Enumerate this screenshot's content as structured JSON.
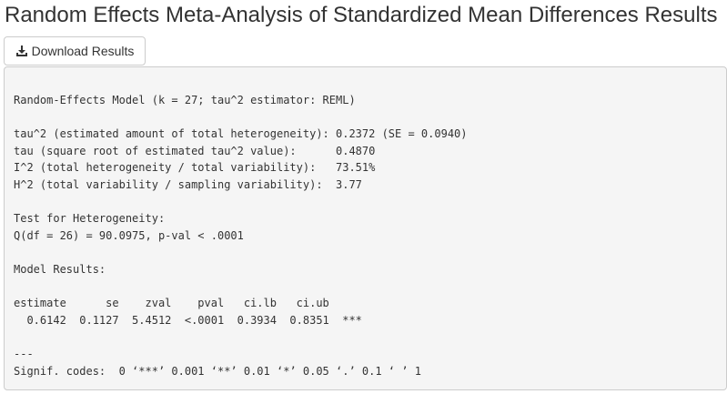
{
  "page": {
    "title": "Random Effects Meta-Analysis of Standardized Mean Differences Results"
  },
  "toolbar": {
    "download_label": "Download Results",
    "download_icon": "download-icon"
  },
  "results": {
    "lines": [
      "Random-Effects Model (k = 27; tau^2 estimator: REML)",
      "",
      "tau^2 (estimated amount of total heterogeneity): 0.2372 (SE = 0.0940)",
      "tau (square root of estimated tau^2 value):      0.4870",
      "I^2 (total heterogeneity / total variability):   73.51%",
      "H^2 (total variability / sampling variability):  3.77",
      "",
      "Test for Heterogeneity:",
      "Q(df = 26) = 90.0975, p-val < .0001",
      "",
      "Model Results:",
      "",
      "estimate      se    zval    pval   ci.lb   ci.ub",
      "  0.6142  0.1127  5.4512  <.0001  0.3934  0.8351  ***",
      "",
      "---",
      "Signif. codes:  0 ‘***’ 0.001 ‘**’ 0.01 ‘*’ 0.05 ‘.’ 0.1 ‘ ’ 1"
    ]
  }
}
